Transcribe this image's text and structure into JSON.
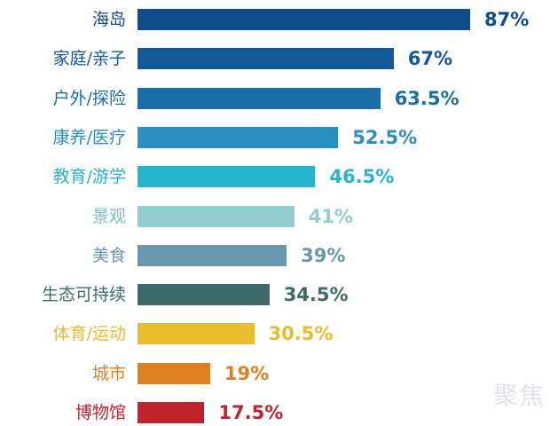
{
  "chart_data": {
    "type": "bar",
    "orientation": "horizontal",
    "categories": [
      "海岛",
      "家庭/亲子",
      "户外/探险",
      "康养/医疗",
      "教育/游学",
      "景观",
      "美食",
      "生态可持续",
      "体育/运动",
      "城市",
      "博物馆"
    ],
    "values": [
      87,
      67,
      63.5,
      52.5,
      46.5,
      41,
      39,
      34.5,
      30.5,
      19,
      17.5
    ],
    "value_labels": [
      "87%",
      "67%",
      "63.5%",
      "52.5%",
      "46.5%",
      "41%",
      "39%",
      "34.5%",
      "30.5%",
      "19%",
      "17.5%"
    ],
    "colors": [
      "#0f4c8a",
      "#145897",
      "#1a6ea6",
      "#2b8fbf",
      "#25b5cc",
      "#94cdd0",
      "#6a97b0",
      "#3d6b6a",
      "#e9bb2f",
      "#e07f22",
      "#c0232e"
    ],
    "grid": false,
    "legend": "none"
  },
  "watermark": "聚焦"
}
